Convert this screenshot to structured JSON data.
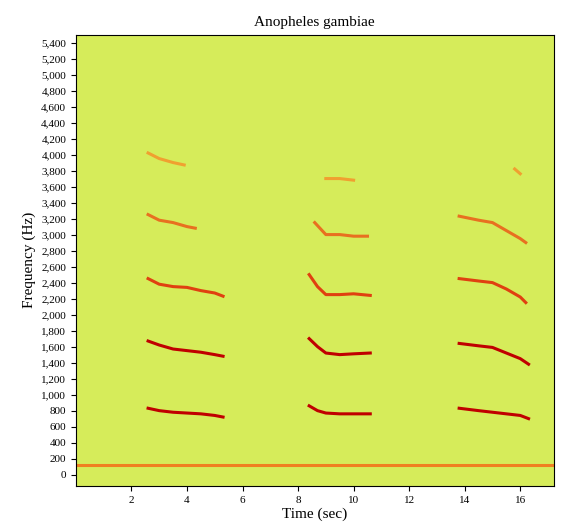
{
  "chart_data": {
    "type": "line",
    "title": "Anopheles gambiae",
    "x_label": "Time (sec)",
    "y_label": "Frequency (Hz)",
    "xlim": [
      0,
      17.2
    ],
    "xticks": [
      2,
      4,
      6,
      8,
      10,
      12,
      14,
      16
    ],
    "ylim": [
      -140,
      5500
    ],
    "yticks": [
      0,
      200,
      400,
      600,
      800,
      {
        "value": 1000,
        "label": "1,000"
      },
      {
        "value": 1200,
        "label": "1,200"
      },
      {
        "value": 1400,
        "label": "1,400"
      },
      {
        "value": 1600,
        "label": "1,600"
      },
      {
        "value": 1800,
        "label": "1,800"
      },
      {
        "value": 2000,
        "label": "2,000"
      },
      {
        "value": 2200,
        "label": "2,200"
      },
      {
        "value": 2400,
        "label": "2,400"
      },
      {
        "value": 2600,
        "label": "2,600"
      },
      {
        "value": 2800,
        "label": "2,800"
      },
      {
        "value": 3000,
        "label": "3,000"
      },
      {
        "value": 3200,
        "label": "3,200"
      },
      {
        "value": 3400,
        "label": "3,400"
      },
      {
        "value": 3600,
        "label": "3,600"
      },
      {
        "value": 3800,
        "label": "3,800"
      },
      {
        "value": 4000,
        "label": "4,000"
      },
      {
        "value": 4200,
        "label": "4,200"
      },
      {
        "value": 4400,
        "label": "4,400"
      },
      {
        "value": 4600,
        "label": "4,600"
      },
      {
        "value": 4800,
        "label": "4,800"
      },
      {
        "value": 5000,
        "label": "5,000"
      },
      {
        "value": 5200,
        "label": "5,200"
      },
      {
        "value": 5400,
        "label": "5,400"
      }
    ],
    "grid": false,
    "series": [
      {
        "color": "#f08020",
        "x": [
          0,
          17.2
        ],
        "values": [
          120,
          120
        ]
      },
      {
        "color": "#c00000",
        "x": [
          2.6,
          3.0,
          3.5,
          4.0,
          4.5,
          5.0,
          5.3
        ],
        "values": [
          830,
          800,
          780,
          770,
          760,
          740,
          720
        ]
      },
      {
        "color": "#c00000",
        "x": [
          2.6,
          3.0,
          3.5,
          4.0,
          4.5,
          5.0,
          5.3
        ],
        "values": [
          1670,
          1620,
          1570,
          1550,
          1530,
          1500,
          1480
        ]
      },
      {
        "color": "#e04010",
        "x": [
          2.6,
          3.0,
          3.5,
          4.0,
          4.5,
          5.0,
          5.3
        ],
        "values": [
          2450,
          2380,
          2350,
          2340,
          2300,
          2270,
          2230
        ]
      },
      {
        "color": "#e87020",
        "x": [
          2.6,
          3.0,
          3.5,
          4.0,
          4.3
        ],
        "values": [
          3250,
          3180,
          3150,
          3100,
          3080
        ]
      },
      {
        "color": "#f0a030",
        "x": [
          2.6,
          3.0,
          3.5,
          3.9
        ],
        "values": [
          4020,
          3950,
          3900,
          3870
        ]
      },
      {
        "color": "#c00000",
        "x": [
          8.4,
          8.7,
          9.0,
          9.5,
          10.0,
          10.6
        ],
        "values": [
          860,
          800,
          770,
          760,
          760,
          760
        ]
      },
      {
        "color": "#c00000",
        "x": [
          8.4,
          8.7,
          9.0,
          9.5,
          10.0,
          10.6
        ],
        "values": [
          1700,
          1600,
          1520,
          1500,
          1510,
          1520
        ]
      },
      {
        "color": "#e04010",
        "x": [
          8.4,
          8.7,
          9.0,
          9.5,
          10.0,
          10.6
        ],
        "values": [
          2500,
          2350,
          2250,
          2250,
          2260,
          2240
        ]
      },
      {
        "color": "#e87020",
        "x": [
          8.6,
          9.0,
          9.5,
          10.0,
          10.5
        ],
        "values": [
          3150,
          3000,
          3000,
          2980,
          2980
        ]
      },
      {
        "color": "#f0a030",
        "x": [
          9.0,
          9.5,
          10.0
        ],
        "values": [
          3700,
          3700,
          3680
        ]
      },
      {
        "color": "#c00000",
        "x": [
          13.8,
          14.5,
          15.0,
          15.5,
          16.0,
          16.3
        ],
        "values": [
          830,
          800,
          780,
          760,
          740,
          700
        ]
      },
      {
        "color": "#c00000",
        "x": [
          13.8,
          14.5,
          15.0,
          15.5,
          16.0,
          16.3
        ],
        "values": [
          1640,
          1610,
          1590,
          1520,
          1450,
          1380
        ]
      },
      {
        "color": "#e04010",
        "x": [
          13.8,
          14.5,
          15.0,
          15.5,
          16.0,
          16.2
        ],
        "values": [
          2450,
          2420,
          2400,
          2320,
          2220,
          2150
        ]
      },
      {
        "color": "#e87020",
        "x": [
          13.8,
          14.5,
          15.0,
          15.5,
          16.0,
          16.2
        ],
        "values": [
          3230,
          3180,
          3150,
          3050,
          2950,
          2900
        ]
      },
      {
        "color": "#f0a030",
        "x": [
          15.8,
          16.0
        ],
        "values": [
          3820,
          3760
        ]
      }
    ]
  }
}
